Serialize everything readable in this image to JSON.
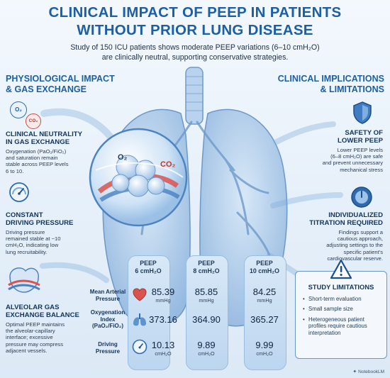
{
  "header": {
    "title_line1": "CLINICAL IMPACT OF PEEP IN PATIENTS",
    "title_line2": "WITHOUT PRIOR LUNG DISEASE",
    "subtitle_line1": "Study of 150 ICU patients shows moderate PEEP variations (6–10 cmH₂O)",
    "subtitle_line2": "are clinically neutral, supporting conservative strategies."
  },
  "left": {
    "heading_line1": "PHYSIOLOGICAL IMPACT",
    "heading_line2": "& GAS EXCHANGE",
    "items": [
      {
        "title_line1": "CLINICAL NEUTRALITY",
        "title_line2": "IN GAS EXCHANGE",
        "text_lines": [
          "Oxygenation (PaO₂/FiO₂)",
          "and saturation remain",
          "stable across PEEP levels",
          "6 to 10."
        ]
      },
      {
        "title_line1": "CONSTANT",
        "title_line2": "DRIVING PRESSURE",
        "text_lines": [
          "Driving pressure",
          "remained stable at ~10",
          "cmH₂O, indicating low",
          "lung recruitability."
        ]
      },
      {
        "title_line1": "ALVEOLAR GAS",
        "title_line2": "EXCHANGE BALANCE",
        "text_lines": [
          "Optimal PEEP maintains",
          "the alveolar-capillary",
          "interface; excessive",
          "pressure may compress",
          "adjacent vessels."
        ]
      }
    ],
    "icon_labels": {
      "o2": "O₂",
      "co2": "CO₂"
    }
  },
  "right": {
    "heading_line1": "CLINICAL IMPLICATIONS",
    "heading_line2": "& LIMITATIONS",
    "items": [
      {
        "title_line1": "SAFETY OF",
        "title_line2": "LOWER PEEP",
        "text_lines": [
          "Lower PEEP levels",
          "(6–8 cmH₂O) are safe",
          "and prevent unnecessary",
          "mechanical stress"
        ]
      },
      {
        "title_line1": "INDIVIDUALIZED",
        "title_line2": "TITRATION REQUIRED",
        "text_lines": [
          "Findings support a",
          "cautious approach,",
          "adjusting settings to the",
          "specific patient's",
          "cardiovascular reserve."
        ]
      }
    ],
    "limitations": {
      "title": "STUDY LIMITATIONS",
      "items": [
        {
          "lines": [
            "Short-term evaluation"
          ]
        },
        {
          "lines": [
            "Small sample size"
          ]
        },
        {
          "lines": [
            "Heterogeneous patient",
            "profiles require cautious",
            "interpretation"
          ]
        }
      ]
    }
  },
  "center": {
    "o2_label": "O₂",
    "co2_label": "CO₂"
  },
  "table": {
    "columns": [
      {
        "line1": "PEEP",
        "line2": "6 cmH₂O"
      },
      {
        "line1": "PEEP",
        "line2": "8 cmH₂O"
      },
      {
        "line1": "PEEP",
        "line2": "10 cmH₂O"
      }
    ],
    "rows": [
      {
        "label_lines": [
          "Mean Arterial",
          "Pressure"
        ],
        "values": [
          "85.39",
          "85.85",
          "84.25"
        ],
        "unit": "mmHg"
      },
      {
        "label_lines": [
          "Oxygenation",
          "Index",
          "(PaO₂/FiO₂)"
        ],
        "values": [
          "373.16",
          "364.90",
          "365.27"
        ],
        "unit": ""
      },
      {
        "label_lines": [
          "Driving",
          "Pressure"
        ],
        "values": [
          "10.13",
          "9.89",
          "9.99"
        ],
        "unit": "cmH₂O"
      }
    ]
  },
  "footer": {
    "brand": "NotebookLM"
  },
  "colors": {
    "accent": "#1d5fa3",
    "lung": "#8fb8e2",
    "artery": "#d9534f",
    "vein": "#4a7fc1"
  }
}
